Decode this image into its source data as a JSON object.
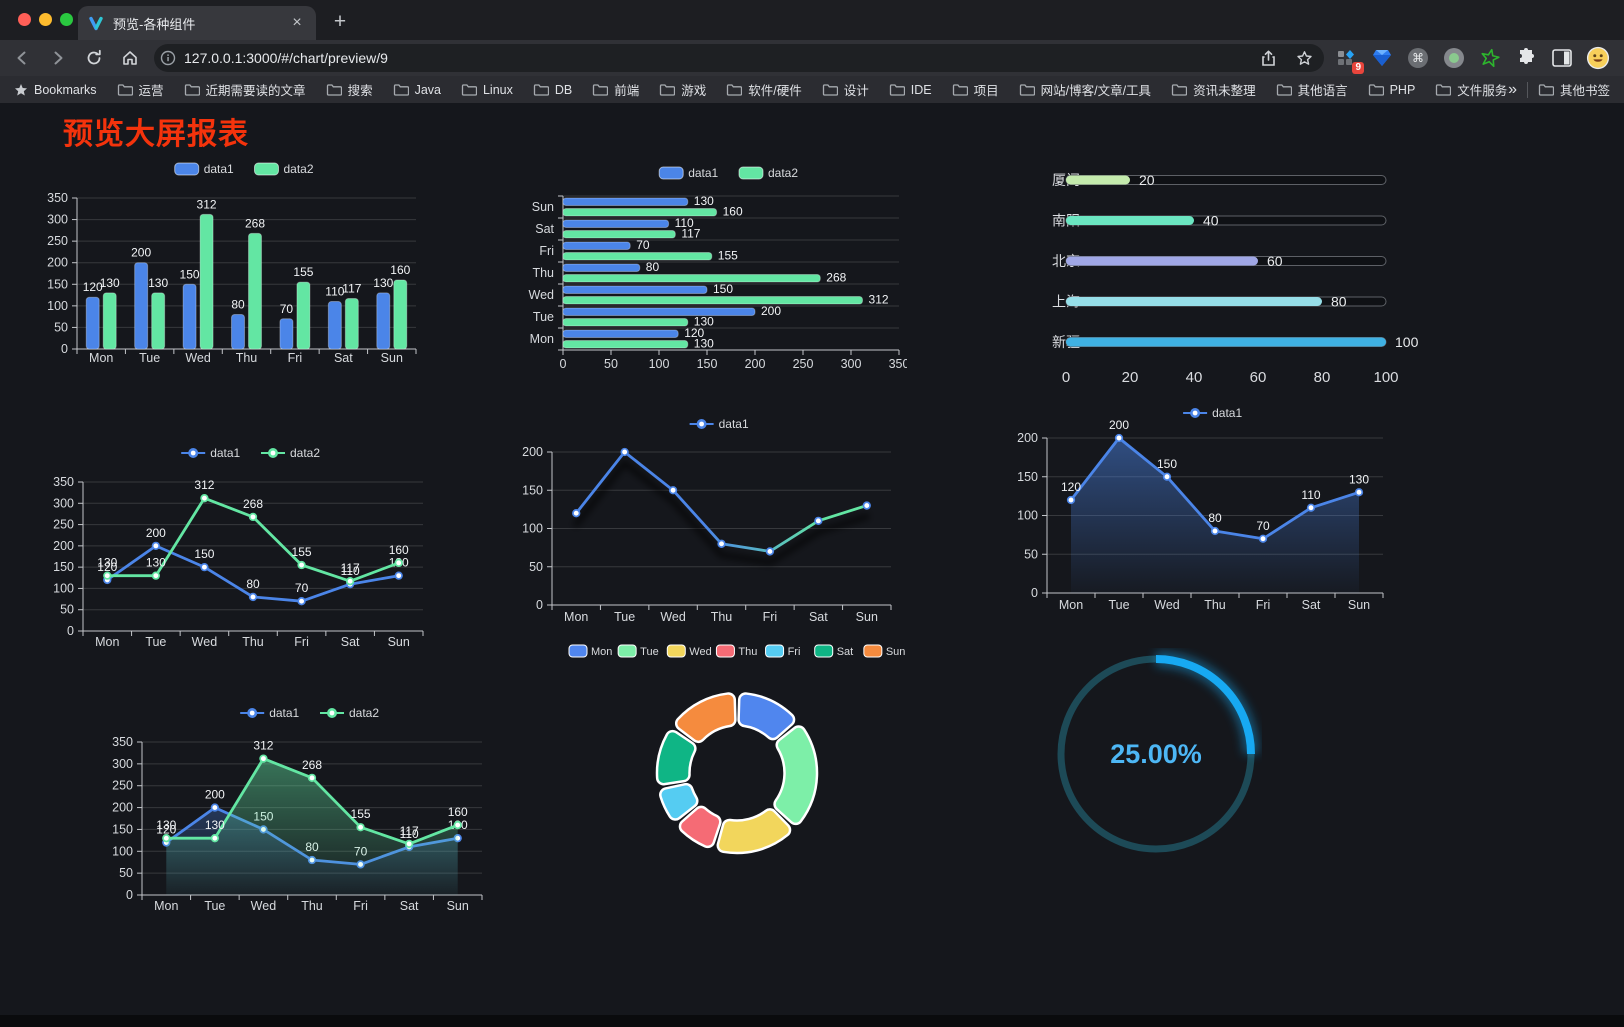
{
  "browser": {
    "tab_title": "预览-各种组件",
    "close_glyph": "×",
    "new_tab_glyph": "+",
    "url": "127.0.0.1:3000/#/chart/preview/9",
    "extensions_badge": "9",
    "bookmarks_label": "Bookmarks",
    "bookmarks": [
      "运营",
      "近期需要读的文章",
      "搜索",
      "Java",
      "Linux",
      "DB",
      "前端",
      "游戏",
      "软件/硬件",
      "设计",
      "IDE",
      "项目",
      "网站/博客/文章/工具",
      "资讯未整理",
      "其他语言",
      "PHP",
      "文件服务器"
    ],
    "bookmarks_overflow": "»",
    "other_bookmarks": "其他书签"
  },
  "page": {
    "title": "预览大屏报表",
    "title_color": "#f4330c",
    "background": "#15171c"
  },
  "chart_data": [
    {
      "id": "grouped-bar",
      "type": "bar",
      "orientation": "vertical",
      "categories": [
        "Mon",
        "Tue",
        "Wed",
        "Thu",
        "Fri",
        "Sat",
        "Sun"
      ],
      "series": [
        {
          "name": "data1",
          "color": "#4b85e8",
          "values": [
            120,
            200,
            150,
            80,
            70,
            110,
            130
          ]
        },
        {
          "name": "data2",
          "color": "#63e6a3",
          "values": [
            130,
            130,
            312,
            268,
            155,
            117,
            160
          ]
        }
      ],
      "ylim": [
        0,
        350
      ],
      "ytick": 50,
      "legend_position": "top",
      "labels": true,
      "grid": true
    },
    {
      "id": "horizontal-bar",
      "type": "bar",
      "orientation": "horizontal",
      "categories": [
        "Mon",
        "Tue",
        "Wed",
        "Thu",
        "Fri",
        "Sat",
        "Sun"
      ],
      "series": [
        {
          "name": "data1",
          "color": "#4b85e8",
          "values": [
            120,
            200,
            150,
            80,
            70,
            110,
            130
          ]
        },
        {
          "name": "data2",
          "color": "#63e6a3",
          "values": [
            130,
            130,
            312,
            268,
            155,
            117,
            160
          ]
        }
      ],
      "xlim": [
        0,
        350
      ],
      "xtick": 50,
      "legend_position": "top",
      "labels": true,
      "grid": true
    },
    {
      "id": "progress-bars",
      "type": "bar",
      "subtype": "progress",
      "xlim": [
        0,
        100
      ],
      "xticks": [
        0,
        20,
        40,
        60,
        80,
        100
      ],
      "items": [
        {
          "label": "厦门",
          "value": 20,
          "color": "#c4ebad"
        },
        {
          "label": "南阳",
          "value": 40,
          "color": "#6be6c1"
        },
        {
          "label": "北京",
          "value": 60,
          "color": "#a0a7e6"
        },
        {
          "label": "上海",
          "value": 80,
          "color": "#96dee8"
        },
        {
          "label": "新疆",
          "value": 100,
          "color": "#3fb1e3"
        }
      ]
    },
    {
      "id": "line",
      "type": "line",
      "categories": [
        "Mon",
        "Tue",
        "Wed",
        "Thu",
        "Fri",
        "Sat",
        "Sun"
      ],
      "series": [
        {
          "name": "data1",
          "color": "#4b85e8",
          "values": [
            120,
            200,
            150,
            80,
            70,
            110,
            130
          ]
        },
        {
          "name": "data2",
          "color": "#63e6a3",
          "values": [
            130,
            130,
            312,
            268,
            155,
            117,
            160
          ]
        }
      ],
      "ylim": [
        0,
        350
      ],
      "ytick": 50,
      "legend_position": "top",
      "labels": true,
      "markers": true
    },
    {
      "id": "gradient-line",
      "type": "line",
      "categories": [
        "Mon",
        "Tue",
        "Wed",
        "Thu",
        "Fri",
        "Sat",
        "Sun"
      ],
      "series": [
        {
          "name": "data1",
          "gradient": [
            "#4b85e8",
            "#63e6a3"
          ],
          "values": [
            120,
            200,
            150,
            80,
            70,
            110,
            130
          ]
        }
      ],
      "ylim": [
        0,
        200
      ],
      "ytick": 50,
      "legend_position": "top",
      "labels": false,
      "markers": true,
      "shadow": true
    },
    {
      "id": "area-line",
      "type": "line",
      "area": true,
      "categories": [
        "Mon",
        "Tue",
        "Wed",
        "Thu",
        "Fri",
        "Sat",
        "Sun"
      ],
      "series": [
        {
          "name": "data1",
          "color": "#4b85e8",
          "values": [
            120,
            200,
            150,
            80,
            70,
            110,
            130
          ]
        }
      ],
      "ylim": [
        0,
        200
      ],
      "ytick": 50,
      "legend_position": "top",
      "labels": true,
      "markers": true
    },
    {
      "id": "dual-area",
      "type": "line",
      "area": true,
      "categories": [
        "Mon",
        "Tue",
        "Wed",
        "Thu",
        "Fri",
        "Sat",
        "Sun"
      ],
      "series": [
        {
          "name": "data1",
          "color": "#4b85e8",
          "values": [
            120,
            200,
            150,
            80,
            70,
            110,
            130
          ]
        },
        {
          "name": "data2",
          "color": "#63e6a3",
          "values": [
            130,
            130,
            312,
            268,
            155,
            117,
            160
          ]
        }
      ],
      "ylim": [
        0,
        350
      ],
      "ytick": 50,
      "legend_position": "top",
      "labels": true,
      "markers": true
    },
    {
      "id": "donut",
      "type": "pie",
      "inner_radius_ratio": 0.59,
      "legend_position": "top",
      "slices": [
        {
          "label": "Mon",
          "value": 120,
          "color": "#5086ee"
        },
        {
          "label": "Tue",
          "value": 200,
          "color": "#7defa8"
        },
        {
          "label": "Wed",
          "value": 150,
          "color": "#f2d65c"
        },
        {
          "label": "Thu",
          "value": 80,
          "color": "#f56b75"
        },
        {
          "label": "Fri",
          "value": 70,
          "color": "#55ccf2"
        },
        {
          "label": "Sat",
          "value": 110,
          "color": "#0fb585"
        },
        {
          "label": "Sun",
          "value": 130,
          "color": "#f58b3e"
        }
      ]
    },
    {
      "id": "gauge",
      "type": "gauge",
      "percent": 25,
      "value_label": "25.00%",
      "track_color": "#1d4a57",
      "arc_color": "#17a9f2",
      "text_color": "#4db7f5"
    }
  ]
}
